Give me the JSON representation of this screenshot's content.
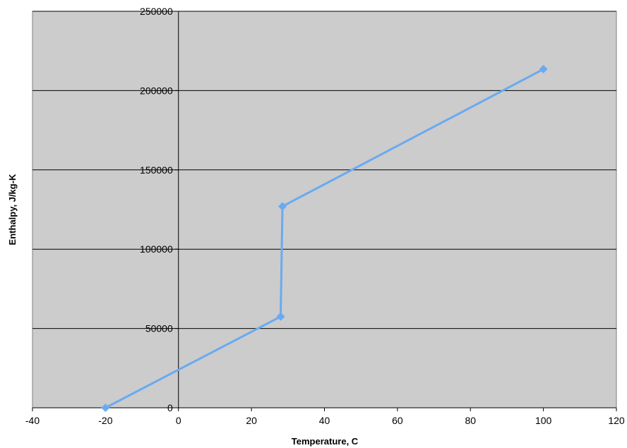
{
  "chart_data": {
    "type": "scatter",
    "title": "",
    "xlabel": "Temperature, C",
    "ylabel": "Enthalpy, J/kg-K",
    "xlim": [
      -40,
      120
    ],
    "ylim": [
      0,
      250000
    ],
    "x_ticks": [
      -40,
      -20,
      0,
      20,
      40,
      60,
      80,
      100,
      120
    ],
    "y_ticks": [
      0,
      50000,
      100000,
      150000,
      200000,
      250000
    ],
    "x_tick_labels": [
      "-40",
      "-20",
      "0",
      "20",
      "40",
      "60",
      "80",
      "100",
      "120"
    ],
    "y_tick_labels": [
      "0",
      "50000",
      "100000",
      "150000",
      "200000",
      "250000"
    ],
    "grid": "horizontal",
    "plot_background": "#cccccc",
    "series": [
      {
        "color": "#6aaaf0",
        "marker": "diamond",
        "line": "straight",
        "points": [
          {
            "x": -20,
            "y": 0
          },
          {
            "x": 28,
            "y": 57500
          },
          {
            "x": 28.5,
            "y": 127000
          },
          {
            "x": 100,
            "y": 213500
          }
        ]
      }
    ]
  }
}
